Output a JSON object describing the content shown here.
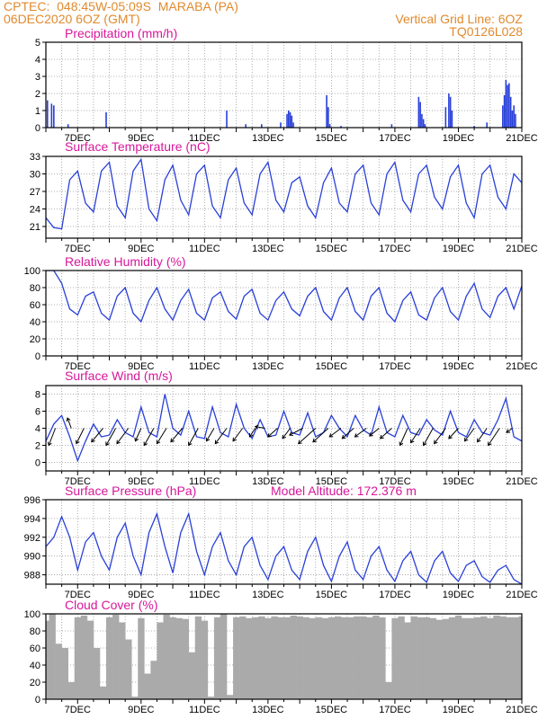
{
  "header": {
    "line1_left": "CPTEC:  048:45W-05:09S  MARABA (PA)",
    "line2_left": "06DEC2020 6OZ (GMT)",
    "line1_right": "Vertical Grid Line: 6OZ",
    "line2_right": "TQ0126L028"
  },
  "colors": {
    "header": "#e08a2e",
    "title": "#d6179a",
    "line": "#2940d8",
    "cloud": "#aaaaaa",
    "grid": "#999999"
  },
  "x_axis": {
    "day_start": 6,
    "day_end": 21,
    "labels": [
      "7DEC",
      "9DEC",
      "11DEC",
      "13DEC",
      "15DEC",
      "17DEC",
      "19DEC",
      "21DEC"
    ],
    "label_days": [
      7,
      9,
      11,
      13,
      15,
      17,
      19,
      21
    ]
  },
  "chart_data": [
    {
      "id": "precip",
      "type": "bar",
      "title": "Precipitation (mm/h)",
      "ylim": [
        0,
        5
      ],
      "yticks": [
        0,
        1,
        2,
        3,
        4,
        5
      ],
      "x": [
        6.05,
        6.18,
        6.25,
        6.7,
        7.9,
        11.7,
        12.3,
        12.8,
        13.4,
        13.6,
        13.65,
        13.7,
        13.75,
        13.8,
        14.85,
        14.9,
        14.95,
        15.3,
        16.9,
        17.75,
        17.8,
        17.85,
        17.9,
        17.95,
        18.6,
        18.7,
        18.75,
        18.8,
        19.5,
        19.9,
        20.4,
        20.45,
        20.5,
        20.55,
        20.6,
        20.65,
        20.7,
        20.75,
        20.8
      ],
      "values": [
        1.6,
        1.4,
        1.3,
        0.2,
        0.9,
        1.0,
        0.2,
        0.2,
        0.3,
        0.8,
        1.0,
        0.9,
        0.7,
        0.3,
        1.9,
        1.2,
        0.2,
        0.1,
        0.2,
        1.8,
        1.5,
        0.8,
        0.5,
        0.2,
        1.2,
        2.0,
        1.8,
        1.0,
        0.1,
        0.3,
        1.3,
        1.9,
        2.8,
        2.5,
        2.6,
        1.8,
        1.0,
        1.3,
        0.8
      ]
    },
    {
      "id": "temp",
      "type": "line",
      "title": "Surface Temperature (nC)",
      "ylim": [
        19,
        33
      ],
      "yticks": [
        21,
        24,
        27,
        30,
        33
      ],
      "x": [
        6.0,
        6.25,
        6.5,
        6.75,
        7.0,
        7.25,
        7.5,
        7.75,
        8.0,
        8.25,
        8.5,
        8.75,
        9.0,
        9.25,
        9.5,
        9.75,
        10.0,
        10.25,
        10.5,
        10.75,
        11.0,
        11.25,
        11.5,
        11.75,
        12.0,
        12.25,
        12.5,
        12.75,
        13.0,
        13.25,
        13.5,
        13.75,
        14.0,
        14.25,
        14.5,
        14.75,
        15.0,
        15.25,
        15.5,
        15.75,
        16.0,
        16.25,
        16.5,
        16.75,
        17.0,
        17.25,
        17.5,
        17.75,
        18.0,
        18.25,
        18.5,
        18.75,
        19.0,
        19.25,
        19.5,
        19.75,
        20.0,
        20.25,
        20.5,
        20.75,
        21.0
      ],
      "values": [
        22.5,
        20.8,
        20.6,
        29.0,
        30.5,
        25.0,
        23.5,
        30.5,
        32.0,
        24.5,
        22.5,
        30.5,
        32.5,
        24.0,
        22.0,
        29.0,
        31.5,
        25.5,
        23.0,
        30.0,
        31.5,
        24.5,
        22.5,
        29.0,
        31.0,
        25.0,
        23.0,
        30.0,
        32.0,
        25.5,
        23.5,
        28.5,
        29.5,
        24.5,
        22.5,
        28.5,
        31.0,
        25.0,
        23.5,
        30.0,
        31.5,
        25.0,
        23.0,
        30.0,
        32.0,
        25.5,
        23.5,
        30.0,
        31.5,
        26.0,
        24.0,
        29.5,
        31.5,
        25.0,
        22.5,
        30.0,
        31.5,
        26.0,
        24.0,
        30.0,
        28.5
      ]
    },
    {
      "id": "rh",
      "type": "line",
      "title": "Relative Humidity (%)",
      "ylim": [
        0,
        100
      ],
      "yticks": [
        0,
        20,
        40,
        60,
        80,
        100
      ],
      "x": [
        6.0,
        6.25,
        6.5,
        6.75,
        7.0,
        7.25,
        7.5,
        7.75,
        8.0,
        8.25,
        8.5,
        8.75,
        9.0,
        9.25,
        9.5,
        9.75,
        10.0,
        10.25,
        10.5,
        10.75,
        11.0,
        11.25,
        11.5,
        11.75,
        12.0,
        12.25,
        12.5,
        12.75,
        13.0,
        13.25,
        13.5,
        13.75,
        14.0,
        14.25,
        14.5,
        14.75,
        15.0,
        15.25,
        15.5,
        15.75,
        16.0,
        16.25,
        16.5,
        16.75,
        17.0,
        17.25,
        17.5,
        17.75,
        18.0,
        18.25,
        18.5,
        18.75,
        19.0,
        19.25,
        19.5,
        19.75,
        20.0,
        20.25,
        20.5,
        20.75,
        21.0
      ],
      "values": [
        100,
        100,
        85,
        55,
        48,
        70,
        75,
        50,
        42,
        70,
        80,
        50,
        40,
        65,
        80,
        55,
        42,
        65,
        78,
        50,
        42,
        68,
        75,
        52,
        43,
        70,
        78,
        50,
        42,
        65,
        75,
        55,
        47,
        70,
        80,
        52,
        42,
        68,
        80,
        52,
        42,
        70,
        80,
        50,
        40,
        65,
        75,
        48,
        42,
        68,
        80,
        52,
        42,
        70,
        85,
        55,
        45,
        70,
        80,
        55,
        82
      ]
    },
    {
      "id": "wind",
      "type": "line",
      "title": "Surface Wind (m/s)",
      "ylim": [
        -1,
        9
      ],
      "yticks": [
        0,
        2,
        4,
        6,
        8
      ],
      "x": [
        6.0,
        6.25,
        6.5,
        6.75,
        7.0,
        7.25,
        7.5,
        7.75,
        8.0,
        8.25,
        8.5,
        8.75,
        9.0,
        9.25,
        9.5,
        9.75,
        10.0,
        10.25,
        10.5,
        10.75,
        11.0,
        11.25,
        11.5,
        11.75,
        12.0,
        12.25,
        12.5,
        12.75,
        13.0,
        13.25,
        13.5,
        13.75,
        14.0,
        14.25,
        14.5,
        14.75,
        15.0,
        15.25,
        15.5,
        15.75,
        16.0,
        16.25,
        16.5,
        16.75,
        17.0,
        17.25,
        17.5,
        17.75,
        18.0,
        18.25,
        18.5,
        18.75,
        19.0,
        19.25,
        19.5,
        19.75,
        20.0,
        20.25,
        20.5,
        20.75,
        21.0
      ],
      "values": [
        2.5,
        4.5,
        5.5,
        3.0,
        0.2,
        2.5,
        4.5,
        3.0,
        3.2,
        5.0,
        3.5,
        3.0,
        6.5,
        3.5,
        3.0,
        8.0,
        4.0,
        3.2,
        6.0,
        3.0,
        2.8,
        6.5,
        3.5,
        3.0,
        6.8,
        4.0,
        2.8,
        5.0,
        3.0,
        3.2,
        6.0,
        3.5,
        3.2,
        5.8,
        3.0,
        3.5,
        5.5,
        4.0,
        3.0,
        5.5,
        3.8,
        3.2,
        6.5,
        3.5,
        3.0,
        5.5,
        3.5,
        3.2,
        5.0,
        3.8,
        3.2,
        6.0,
        3.5,
        3.0,
        5.0,
        3.5,
        3.2,
        5.0,
        7.5,
        3.0,
        2.5
      ],
      "vectors": [
        {
          "x": 6.3,
          "dx": -0.35,
          "dy": -2.0
        },
        {
          "x": 6.8,
          "dx": -0.2,
          "dy": 1.2
        },
        {
          "x": 7.2,
          "dx": -0.4,
          "dy": -1.8
        },
        {
          "x": 7.8,
          "dx": -0.6,
          "dy": -1.6
        },
        {
          "x": 8.2,
          "dx": -0.5,
          "dy": -2.0
        },
        {
          "x": 8.6,
          "dx": -0.6,
          "dy": -1.8
        },
        {
          "x": 9.0,
          "dx": -0.3,
          "dy": -1.5
        },
        {
          "x": 9.4,
          "dx": -0.5,
          "dy": -2.0
        },
        {
          "x": 9.8,
          "dx": -0.5,
          "dy": -1.8
        },
        {
          "x": 10.3,
          "dx": -0.6,
          "dy": -1.6
        },
        {
          "x": 10.8,
          "dx": -0.5,
          "dy": -2.0
        },
        {
          "x": 11.3,
          "dx": -0.4,
          "dy": -1.5
        },
        {
          "x": 11.7,
          "dx": -0.6,
          "dy": -1.8
        },
        {
          "x": 12.2,
          "dx": -0.5,
          "dy": -1.5
        },
        {
          "x": 12.6,
          "dx": -0.3,
          "dy": -1.0
        },
        {
          "x": 12.9,
          "dx": -0.5,
          "dy": 0.2
        },
        {
          "x": 13.3,
          "dx": -0.5,
          "dy": -1.0
        },
        {
          "x": 13.7,
          "dx": -0.4,
          "dy": -1.2
        },
        {
          "x": 14.1,
          "dx": -0.7,
          "dy": -0.8
        },
        {
          "x": 14.5,
          "dx": -0.9,
          "dy": -1.8
        },
        {
          "x": 14.9,
          "dx": -0.8,
          "dy": -1.6
        },
        {
          "x": 15.3,
          "dx": -0.6,
          "dy": -1.0
        },
        {
          "x": 15.7,
          "dx": -0.6,
          "dy": -1.2
        },
        {
          "x": 16.1,
          "dx": -0.6,
          "dy": -1.0
        },
        {
          "x": 16.5,
          "dx": -0.5,
          "dy": -0.9
        },
        {
          "x": 16.9,
          "dx": -0.6,
          "dy": -1.2
        },
        {
          "x": 17.4,
          "dx": -0.4,
          "dy": -2.0
        },
        {
          "x": 17.8,
          "dx": -0.5,
          "dy": -1.7
        },
        {
          "x": 18.2,
          "dx": -0.5,
          "dy": -2.0
        },
        {
          "x": 18.6,
          "dx": -0.6,
          "dy": -1.8
        },
        {
          "x": 19.0,
          "dx": -0.5,
          "dy": -1.2
        },
        {
          "x": 19.5,
          "dx": -0.5,
          "dy": -1.5
        },
        {
          "x": 19.9,
          "dx": -0.5,
          "dy": -1.6
        },
        {
          "x": 20.3,
          "dx": -0.6,
          "dy": -2.0
        },
        {
          "x": 20.7,
          "dx": -0.3,
          "dy": -0.5
        }
      ]
    },
    {
      "id": "pres",
      "type": "line",
      "title": "Surface Pressure (hPa)",
      "subtitle": "Model Altitude: 172.376 m",
      "ylim": [
        987,
        996
      ],
      "yticks": [
        988,
        990,
        992,
        994,
        996
      ],
      "x": [
        6.0,
        6.25,
        6.5,
        6.75,
        7.0,
        7.25,
        7.5,
        7.75,
        8.0,
        8.25,
        8.5,
        8.75,
        9.0,
        9.25,
        9.5,
        9.75,
        10.0,
        10.25,
        10.5,
        10.75,
        11.0,
        11.25,
        11.5,
        11.75,
        12.0,
        12.25,
        12.5,
        12.75,
        13.0,
        13.25,
        13.5,
        13.75,
        14.0,
        14.25,
        14.5,
        14.75,
        15.0,
        15.25,
        15.5,
        15.75,
        16.0,
        16.25,
        16.5,
        16.75,
        17.0,
        17.25,
        17.5,
        17.75,
        18.0,
        18.25,
        18.5,
        18.75,
        19.0,
        19.25,
        19.5,
        19.75,
        20.0,
        20.25,
        20.5,
        20.75,
        21.0
      ],
      "values": [
        991.0,
        992.0,
        994.2,
        992.0,
        988.5,
        991.5,
        992.5,
        990.0,
        988.5,
        992.0,
        993.5,
        990.0,
        988.0,
        992.5,
        994.5,
        991.0,
        988.2,
        992.5,
        994.5,
        990.5,
        988.0,
        991.0,
        992.5,
        989.5,
        988.0,
        991.0,
        992.0,
        989.0,
        987.5,
        990.0,
        991.0,
        988.5,
        987.5,
        990.5,
        992.0,
        989.0,
        987.3,
        990.0,
        991.5,
        988.5,
        987.5,
        990.0,
        991.0,
        988.5,
        987.3,
        989.5,
        990.5,
        988.0,
        987.2,
        989.5,
        990.5,
        988.2,
        987.3,
        989.0,
        989.5,
        987.8,
        987.2,
        988.5,
        989.0,
        987.5,
        987.0
      ]
    },
    {
      "id": "cloud",
      "type": "area",
      "title": "Cloud Cover (%)",
      "ylim": [
        0,
        100
      ],
      "yticks": [
        0,
        20,
        40,
        60,
        80,
        100
      ],
      "x": [
        6.0,
        6.2,
        6.4,
        6.6,
        6.8,
        7.0,
        7.2,
        7.4,
        7.6,
        7.8,
        8.0,
        8.2,
        8.4,
        8.6,
        8.8,
        9.0,
        9.2,
        9.4,
        9.6,
        9.8,
        10.0,
        10.2,
        10.4,
        10.6,
        10.8,
        11.0,
        11.2,
        11.4,
        11.6,
        11.8,
        12.0,
        12.2,
        12.4,
        12.6,
        12.8,
        13.0,
        13.2,
        13.4,
        13.6,
        13.8,
        14.0,
        14.2,
        14.4,
        14.6,
        14.8,
        15.0,
        15.2,
        15.4,
        15.6,
        15.8,
        16.0,
        16.2,
        16.4,
        16.6,
        16.8,
        17.0,
        17.2,
        17.4,
        17.6,
        17.8,
        18.0,
        18.2,
        18.4,
        18.6,
        18.8,
        19.0,
        19.2,
        19.4,
        19.6,
        19.8,
        20.0,
        20.2,
        20.4,
        20.6,
        20.8,
        21.0
      ],
      "values": [
        92,
        100,
        65,
        60,
        20,
        96,
        98,
        92,
        60,
        15,
        96,
        99,
        90,
        70,
        3,
        95,
        30,
        45,
        90,
        99,
        96,
        95,
        94,
        55,
        97,
        92,
        3,
        96,
        100,
        5,
        96,
        97,
        95,
        96,
        97,
        95,
        97,
        96,
        96,
        98,
        97,
        96,
        95,
        96,
        95,
        96,
        97,
        96,
        96,
        97,
        97,
        96,
        98,
        96,
        20,
        95,
        97,
        90,
        97,
        96,
        96,
        95,
        93,
        94,
        96,
        98,
        95,
        95,
        96,
        97,
        95,
        98,
        97,
        96,
        96,
        97
      ]
    }
  ]
}
